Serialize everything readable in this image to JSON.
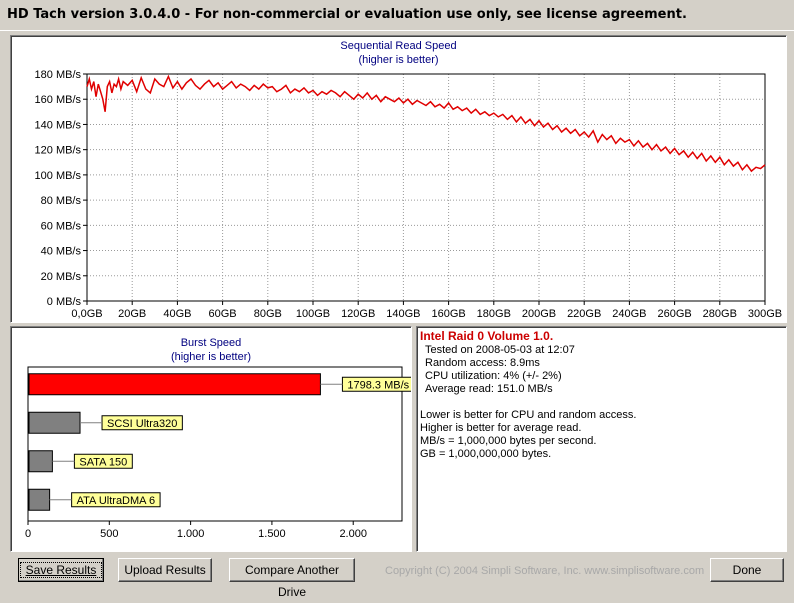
{
  "window": {
    "title": "HD Tach version 3.0.4.0  - For non-commercial or evaluation use only, see license agreement."
  },
  "seq_chart": {
    "title": "Sequential Read Speed",
    "subtitle": "(higher is better)"
  },
  "burst_chart": {
    "title": "Burst Speed",
    "subtitle": "(higher is better)"
  },
  "chart_data": [
    {
      "type": "line",
      "title": "Sequential Read Speed",
      "subtitle": "(higher is better)",
      "x_ticks": [
        "0,0GB",
        "20GB",
        "40GB",
        "60GB",
        "80GB",
        "100GB",
        "120GB",
        "140GB",
        "160GB",
        "180GB",
        "200GB",
        "220GB",
        "240GB",
        "260GB",
        "280GB",
        "300GB"
      ],
      "y_ticks": [
        "0 MB/s",
        "20 MB/s",
        "40 MB/s",
        "60 MB/s",
        "80 MB/s",
        "100 MB/s",
        "120 MB/s",
        "140 MB/s",
        "160 MB/s",
        "180 MB/s"
      ],
      "xlim": [
        0,
        300
      ],
      "ylim": [
        0,
        180
      ],
      "grid": true,
      "series": [
        {
          "color": "#e00000",
          "x": [
            0,
            1,
            2,
            3,
            4,
            5,
            6,
            7,
            8,
            9,
            10,
            11,
            12,
            13,
            14,
            15,
            16,
            18,
            20,
            22,
            24,
            26,
            28,
            30,
            32,
            34,
            36,
            38,
            40,
            42,
            44,
            46,
            48,
            50,
            52,
            54,
            56,
            58,
            60,
            62,
            64,
            66,
            68,
            70,
            72,
            74,
            76,
            78,
            80,
            82,
            84,
            86,
            88,
            90,
            92,
            94,
            96,
            98,
            100,
            102,
            104,
            106,
            108,
            110,
            112,
            114,
            116,
            118,
            120,
            122,
            124,
            126,
            128,
            130,
            132,
            134,
            136,
            138,
            140,
            142,
            144,
            146,
            148,
            150,
            152,
            154,
            156,
            158,
            160,
            162,
            164,
            166,
            168,
            170,
            172,
            174,
            176,
            178,
            180,
            182,
            184,
            186,
            188,
            190,
            192,
            194,
            196,
            198,
            200,
            202,
            204,
            206,
            208,
            210,
            212,
            214,
            216,
            218,
            220,
            222,
            224,
            226,
            228,
            230,
            232,
            234,
            236,
            238,
            240,
            242,
            244,
            246,
            248,
            250,
            252,
            254,
            256,
            258,
            260,
            262,
            264,
            266,
            268,
            270,
            272,
            274,
            276,
            278,
            280,
            282,
            284,
            286,
            288,
            290,
            292,
            294,
            296,
            298,
            300
          ],
          "y": [
            170,
            176,
            168,
            174,
            162,
            172,
            166,
            160,
            150,
            170,
            174,
            165,
            172,
            170,
            176,
            168,
            174,
            171,
            175,
            166,
            177,
            168,
            165,
            176,
            172,
            170,
            178,
            169,
            174,
            168,
            173,
            176,
            171,
            168,
            172,
            175,
            170,
            173,
            168,
            171,
            174,
            169,
            172,
            170,
            167,
            171,
            168,
            172,
            169,
            170,
            166,
            168,
            171,
            165,
            168,
            166,
            169,
            165,
            167,
            163,
            166,
            164,
            167,
            165,
            162,
            166,
            163,
            160,
            164,
            161,
            165,
            160,
            163,
            158,
            162,
            160,
            158,
            161,
            157,
            160,
            156,
            159,
            157,
            155,
            158,
            154,
            156,
            153,
            157,
            152,
            154,
            151,
            153,
            149,
            152,
            148,
            150,
            147,
            149,
            146,
            148,
            144,
            147,
            142,
            146,
            141,
            144,
            139,
            143,
            138,
            141,
            136,
            139,
            134,
            137,
            133,
            136,
            131,
            134,
            130,
            135,
            126,
            132,
            128,
            131,
            125,
            129,
            126,
            128,
            123,
            127,
            122,
            125,
            120,
            124,
            119,
            122,
            117,
            121,
            116,
            119,
            114,
            118,
            113,
            117,
            111,
            115,
            110,
            114,
            108,
            112,
            107,
            110,
            104,
            108,
            103,
            106,
            105,
            108
          ]
        }
      ]
    },
    {
      "type": "bar",
      "orientation": "horizontal",
      "title": "Burst Speed",
      "subtitle": "(higher is better)",
      "x_ticks": [
        "0",
        "500",
        "1.000",
        "1.500",
        "2.000"
      ],
      "xlim": [
        0,
        2300
      ],
      "categories": [
        "1798.3 MB/s",
        "SCSI Ultra320",
        "SATA 150",
        "ATA UltraDMA 6"
      ],
      "values": [
        1798.3,
        320,
        150,
        133
      ],
      "colors": [
        "#ff0000",
        "#808080",
        "#808080",
        "#808080"
      ]
    }
  ],
  "info": {
    "drive_name": "Intel Raid 0 Volume 1.0.",
    "tested_on": "Tested on 2008-05-03 at 12:07",
    "random_access": "Random access: 8.9ms",
    "cpu_utilization": "CPU utilization: 4% (+/- 2%)",
    "average_read": "Average read: 151.0 MB/s",
    "note1": "Lower is better for CPU and random access.",
    "note2": "Higher is better for average read.",
    "note3": "MB/s = 1,000,000 bytes per second.",
    "note4": "GB = 1,000,000,000 bytes."
  },
  "footer": {
    "save_label": "Save Results",
    "upload_label": "Upload Results",
    "compare_label": "Compare Another Drive",
    "copyright": "Copyright (C) 2004 Simpli Software, Inc. www.simplisoftware.com",
    "done_label": "Done"
  }
}
